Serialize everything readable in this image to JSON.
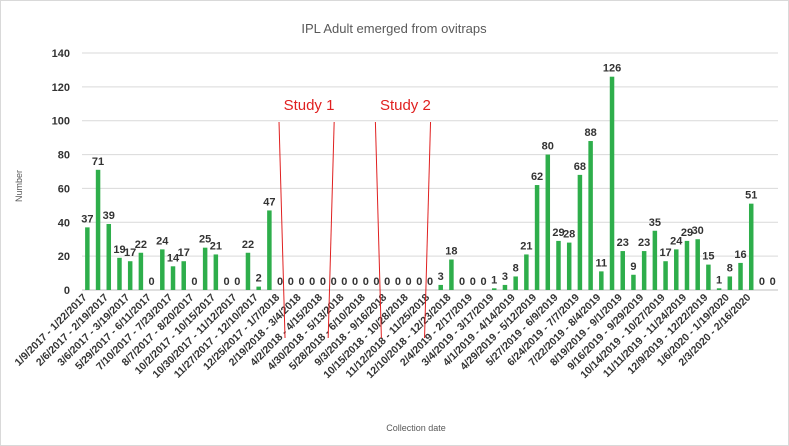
{
  "chart_data": {
    "type": "bar",
    "title": "IPL Adult emerged from ovitraps",
    "xlabel": "Collection date",
    "ylabel": "Number",
    "ylim": [
      0,
      140
    ],
    "yticks": [
      0,
      20,
      40,
      60,
      80,
      100,
      120,
      140
    ],
    "grid": true,
    "legend": "none",
    "colors": {
      "bar": "#2eae4b",
      "annotation": "#e02020",
      "grid": "#d9d9d9"
    },
    "values": [
      37,
      71,
      39,
      19,
      17,
      22,
      0,
      24,
      14,
      17,
      0,
      25,
      21,
      0,
      0,
      22,
      2,
      47,
      0,
      0,
      0,
      0,
      0,
      0,
      0,
      0,
      0,
      0,
      0,
      0,
      0,
      0,
      0,
      3,
      18,
      0,
      0,
      0,
      1,
      3,
      8,
      21,
      62,
      80,
      29,
      28,
      68,
      88,
      11,
      126,
      23,
      9,
      23,
      35,
      17,
      24,
      29,
      30,
      15,
      1,
      8,
      16,
      51,
      0,
      0
    ],
    "tick_labels": [
      "1/9/2017 - 1/22/2017",
      "2/6/2017 - 2/19/2017",
      "3/6/2017 - 3/19/2017",
      "5/29/2017 - 6/11/2017",
      "7/10/2017 - 7/23/2017",
      "8/7/2017 - 8/20/2017",
      "10/2/2017 - 10/15/2017",
      "10/30/2017 - 11/12/2017",
      "11/27/2017 - 12/10/2017",
      "12/25/2017 - 1/7/2018",
      "2/19/2018 - 3/4/2018",
      "4/2/2018 - 4/15/2018",
      "4/30/2018 - 5/13/2018",
      "5/28/2018 - 6/10/2018",
      "9/3/2018 - 9/16/2018",
      "10/15/2018 - 10/28/2018",
      "11/12/2018 - 11/25/2018",
      "12/10/2018 - 12/23/2018",
      "2/4/2019 - 2/17/2019",
      "3/4/2019 - 3/17/2019",
      "4/1/2019 - 4/14/2019",
      "4/29/2019 - 5/12/2019",
      "5/27/2019 - 6/9/2019",
      "6/24/2019 - 7/7/2019",
      "7/22/2019 - 8/4/2019",
      "8/19/2019 - 9/1/2019",
      "9/16/2019 - 9/29/2019",
      "10/14/2019 - 10/27/2019",
      "11/11/2019 - 11/24/2019",
      "12/9/2019 - 12/22/2019",
      "1/6/2020 - 1/19/2020",
      "2/3/2020 - 2/16/2020"
    ],
    "annotations": [
      {
        "text": "Study 1",
        "start_bar": 18,
        "end_bar": 23
      },
      {
        "text": "Study 2",
        "start_bar": 27,
        "end_bar": 32
      }
    ]
  }
}
